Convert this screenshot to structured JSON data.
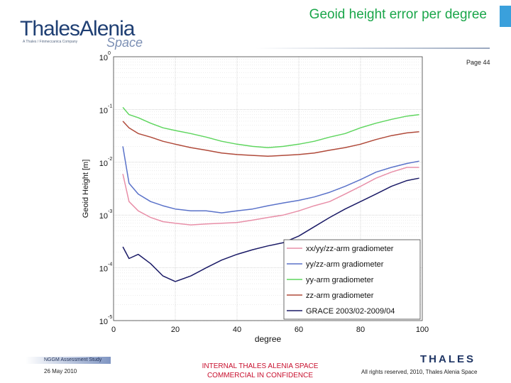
{
  "header": {
    "logo_main": "ThalesAlenia",
    "logo_sub": "A Thales / Finmeccanica Company",
    "logo_space": "Space",
    "title": "Geoid height error per degree",
    "page": "Page 44"
  },
  "footer": {
    "study": "NGGM Assessment Study",
    "date": "26 May 2010",
    "confidential_line1": "INTERNAL THALES ALENIA SPACE",
    "confidential_line2": "COMMERCIAL IN CONFIDENCE",
    "thales_logo": "THALES",
    "rights": "All rights reserved, 2010, Thales Alenia Space"
  },
  "colors": {
    "title": "#1aa64a",
    "confidential": "#c8102e",
    "brand_blue": "#1f3f73"
  },
  "chart_data": {
    "type": "line",
    "xlabel": "degree",
    "ylabel": "Geoid Height [m]",
    "xlim": [
      0,
      100
    ],
    "ylim": [
      1e-05,
      1
    ],
    "yscale": "log",
    "grid": true,
    "x_ticks": [
      "0",
      "20",
      "40",
      "60",
      "80",
      "100"
    ],
    "y_ticks": [
      {
        "base": "10",
        "exp": "0"
      },
      {
        "base": "10",
        "exp": "-1"
      },
      {
        "base": "10",
        "exp": "-2"
      },
      {
        "base": "10",
        "exp": "-3"
      },
      {
        "base": "10",
        "exp": "-4"
      },
      {
        "base": "10",
        "exp": "-5"
      }
    ],
    "legend_position": "bottom-right",
    "series": [
      {
        "name": "xx/yy/zz-arm gradiometer",
        "color": "#e88fa8",
        "x": [
          3,
          5,
          8,
          12,
          16,
          20,
          25,
          30,
          35,
          40,
          45,
          50,
          55,
          60,
          65,
          70,
          75,
          80,
          85,
          90,
          95,
          99
        ],
        "y": [
          0.006,
          0.0018,
          0.0012,
          0.0009,
          0.00075,
          0.0007,
          0.00065,
          0.00068,
          0.0007,
          0.00072,
          0.0008,
          0.0009,
          0.001,
          0.0012,
          0.0015,
          0.0018,
          0.0025,
          0.0035,
          0.005,
          0.0065,
          0.008,
          0.008
        ]
      },
      {
        "name": "yy/zz-arm gradiometer",
        "color": "#5a72c9",
        "x": [
          3,
          5,
          8,
          12,
          16,
          20,
          25,
          30,
          35,
          40,
          45,
          50,
          55,
          60,
          65,
          70,
          75,
          80,
          85,
          90,
          95,
          99
        ],
        "y": [
          0.02,
          0.004,
          0.0025,
          0.0018,
          0.0015,
          0.0013,
          0.0012,
          0.0012,
          0.0011,
          0.0012,
          0.0013,
          0.0015,
          0.0017,
          0.0019,
          0.0022,
          0.0027,
          0.0035,
          0.0047,
          0.0065,
          0.008,
          0.0095,
          0.0105
        ]
      },
      {
        "name": "yy-arm gradiometer",
        "color": "#5fd65f",
        "x": [
          3,
          5,
          8,
          12,
          16,
          20,
          25,
          30,
          35,
          40,
          45,
          50,
          55,
          60,
          65,
          70,
          75,
          80,
          85,
          90,
          95,
          99
        ],
        "y": [
          0.11,
          0.08,
          0.07,
          0.055,
          0.045,
          0.04,
          0.035,
          0.03,
          0.025,
          0.022,
          0.02,
          0.019,
          0.02,
          0.022,
          0.025,
          0.03,
          0.035,
          0.045,
          0.055,
          0.065,
          0.075,
          0.08
        ]
      },
      {
        "name": "zz-arm gradiometer",
        "color": "#b04a3a",
        "x": [
          3,
          5,
          8,
          12,
          16,
          20,
          25,
          30,
          35,
          40,
          45,
          50,
          55,
          60,
          65,
          70,
          75,
          80,
          85,
          90,
          95,
          99
        ],
        "y": [
          0.06,
          0.045,
          0.035,
          0.03,
          0.025,
          0.022,
          0.019,
          0.017,
          0.015,
          0.014,
          0.0135,
          0.013,
          0.0135,
          0.014,
          0.015,
          0.017,
          0.019,
          0.022,
          0.027,
          0.032,
          0.036,
          0.038
        ]
      },
      {
        "name": "GRACE 2003/02-2009/04",
        "color": "#1a1a66",
        "x": [
          3,
          5,
          8,
          12,
          16,
          20,
          25,
          30,
          35,
          40,
          45,
          50,
          55,
          60,
          65,
          70,
          75,
          80,
          85,
          90,
          95,
          99
        ],
        "y": [
          0.00025,
          0.00015,
          0.00018,
          0.00012,
          7e-05,
          5.5e-05,
          7e-05,
          0.0001,
          0.00014,
          0.00018,
          0.00022,
          0.00026,
          0.0003,
          0.0004,
          0.0006,
          0.0009,
          0.0013,
          0.0018,
          0.0025,
          0.0035,
          0.0045,
          0.005
        ]
      }
    ]
  }
}
